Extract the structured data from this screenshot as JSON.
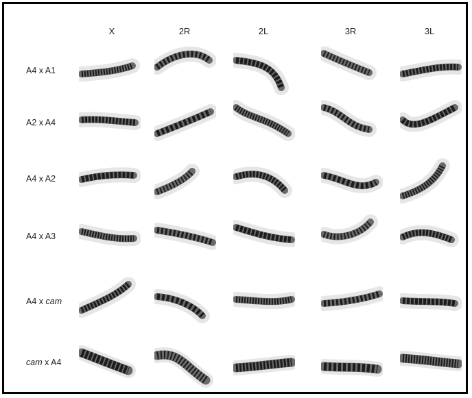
{
  "columns": [
    "X",
    "2R",
    "2L",
    "3R",
    "3L"
  ],
  "rows": [
    {
      "label_pre": "A4 x A1",
      "label_italic": "",
      "label_post": ""
    },
    {
      "label_pre": "A2 x A4",
      "label_italic": "",
      "label_post": ""
    },
    {
      "label_pre": "A4 x A2",
      "label_italic": "",
      "label_post": ""
    },
    {
      "label_pre": "A4 x A3",
      "label_italic": "",
      "label_post": ""
    },
    {
      "label_pre": "A4 x ",
      "label_italic": "cam",
      "label_post": ""
    },
    {
      "label_pre": "",
      "label_italic": "cam",
      "label_post": " x A4"
    }
  ],
  "colors": {
    "chromosome_dark": "#1c1c1c",
    "chromosome_mid": "#6a6a6a",
    "background": "#ffffff",
    "frame": "#000000"
  }
}
